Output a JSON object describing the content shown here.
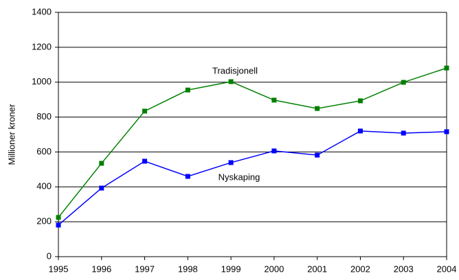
{
  "chart_data": {
    "type": "line",
    "y_label": "Millioner kroner",
    "x": [
      1995,
      1996,
      1997,
      1998,
      1999,
      2000,
      2001,
      2002,
      2003,
      2004
    ],
    "series": [
      {
        "name": "Tradisjonell",
        "color": "#008000",
        "values": [
          225,
          535,
          834,
          955,
          1003,
          897,
          849,
          893,
          999,
          1081
        ]
      },
      {
        "name": "Nyskaping",
        "color": "#0000ff",
        "values": [
          181,
          393,
          547,
          460,
          539,
          606,
          582,
          720,
          708,
          716
        ]
      }
    ],
    "xlim": [
      1995,
      2004
    ],
    "xticks": [
      1995,
      1996,
      1997,
      1998,
      1999,
      2000,
      2001,
      2002,
      2003,
      2004
    ],
    "ylim": [
      0,
      1400
    ],
    "yticks": [
      0,
      200,
      400,
      600,
      800,
      1000,
      1200,
      1400
    ],
    "grid": true
  }
}
